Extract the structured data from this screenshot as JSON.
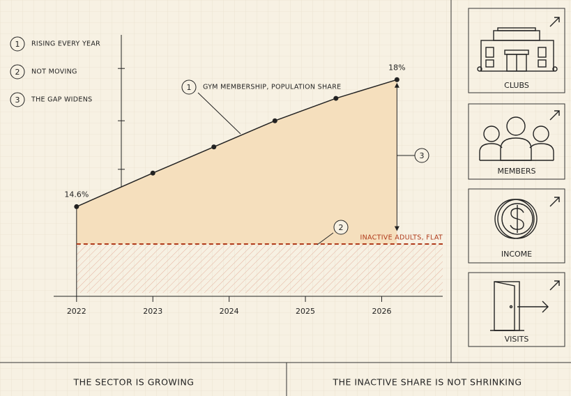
{
  "chart_data": {
    "type": "line",
    "x": [
      2022,
      2023,
      2023.8,
      2024.6,
      2025.4,
      2026.2
    ],
    "series": [
      {
        "name": "GYM MEMBERSHIP, POPULATION SHARE",
        "color": "#222222",
        "values": [
          14.6,
          15.5,
          16.2,
          16.9,
          17.5,
          18
        ],
        "value_labels": [
          "14.6%",
          null,
          null,
          null,
          null,
          "18%"
        ]
      },
      {
        "name": "INACTIVE ADULTS, FLAT",
        "color": "#b03a1a",
        "values": [
          13.6,
          13.6,
          13.6,
          13.6,
          13.6,
          13.6
        ]
      }
    ],
    "xlim": [
      2021.7,
      2026.8
    ],
    "xticks": [
      2022,
      2023,
      2024,
      2025,
      2026
    ],
    "ylim": [
      12.2,
      19.2
    ],
    "yticks": [
      15.6,
      16.9,
      18.3
    ],
    "badges": [
      "1",
      "2",
      "3"
    ]
  },
  "notes": [
    {
      "number": "1",
      "text": "RISING EVERY YEAR"
    },
    {
      "number": "2",
      "text": "NOT MOVING"
    },
    {
      "number": "3",
      "text": "THE GAP WIDENS"
    }
  ],
  "cards": [
    "CLUBS",
    "MEMBERS",
    "INCOME",
    "VISITS"
  ],
  "footer": [
    "THE SECTOR IS GROWING",
    "THE INACTIVE SHARE IS NOT SHRINKING"
  ]
}
